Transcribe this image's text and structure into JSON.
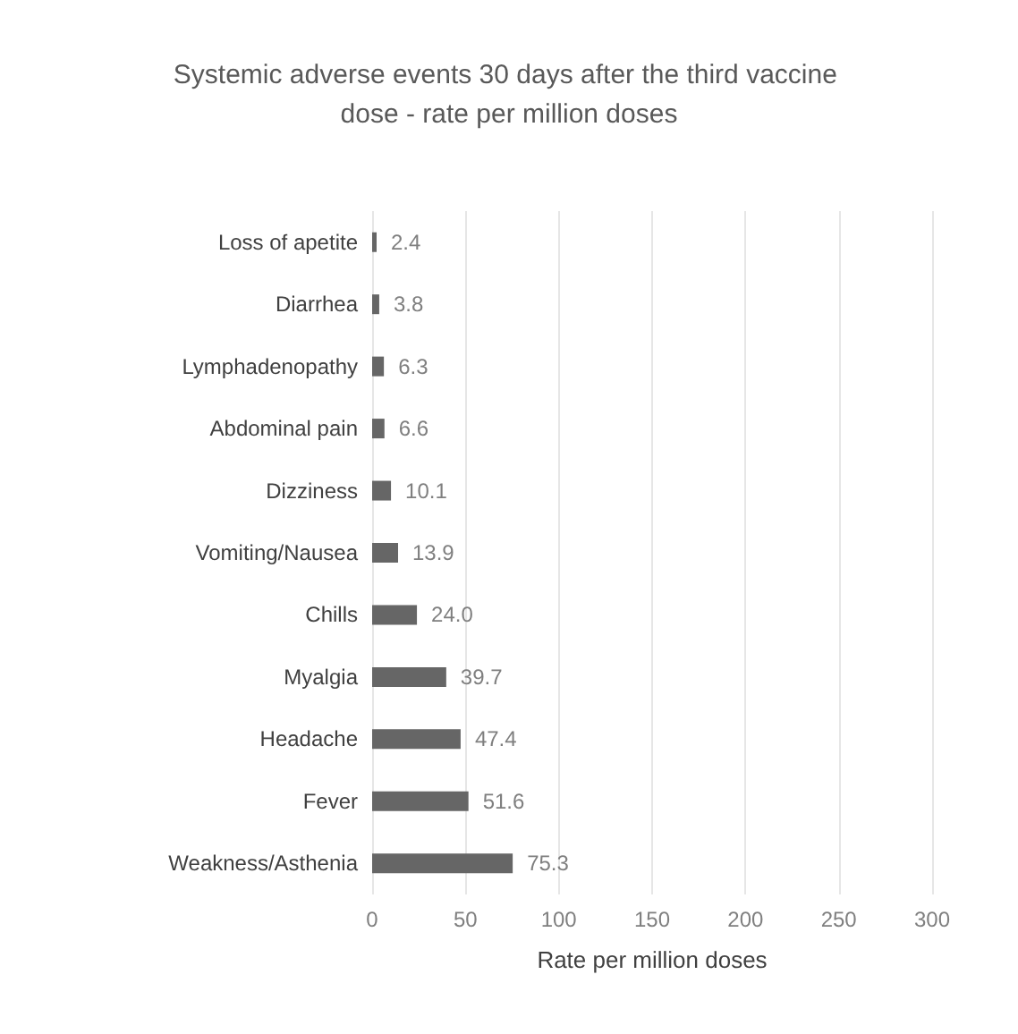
{
  "chart_data": {
    "type": "bar",
    "orientation": "horizontal",
    "title": "Systemic adverse events 30 days after the third vaccine dose - rate per million doses",
    "categories": [
      "Loss of apetite",
      "Diarrhea",
      "Lymphadenopathy",
      "Abdominal pain",
      "Dizziness",
      "Vomiting/Nausea",
      "Chills",
      "Myalgia",
      "Headache",
      "Fever",
      "Weakness/Asthenia"
    ],
    "values": [
      2.4,
      3.8,
      6.3,
      6.6,
      10.1,
      13.9,
      24.0,
      39.7,
      47.4,
      51.6,
      75.3
    ],
    "value_labels": [
      "2.4",
      "3.8",
      "6.3",
      "6.6",
      "10.1",
      "13.9",
      "24.0",
      "39.7",
      "47.4",
      "51.6",
      "75.3"
    ],
    "color": "#666666",
    "xlabel": "Rate per million doses",
    "xlim": [
      0,
      300
    ],
    "xticks": [
      0,
      50,
      100,
      150,
      200,
      250,
      300
    ],
    "grid": "x"
  }
}
